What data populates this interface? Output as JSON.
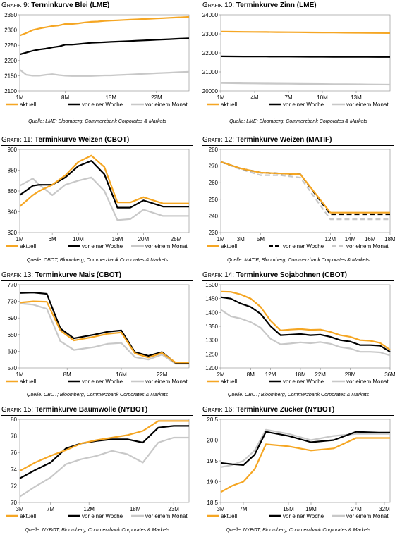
{
  "legend_labels": [
    "aktuell",
    "vor einer Woche",
    "vor einem Monat"
  ],
  "series_colors": [
    "#f5a623",
    "#000000",
    "#c8c8c8"
  ],
  "charts": [
    {
      "id": "g9",
      "prefix": "Grafik 9:",
      "title": "Terminkurve Blei (LME)",
      "source": "Quelle: LME; Bloomberg, Commerzbank Corporates & Markets",
      "chart_data": {
        "type": "line",
        "x": [
          1,
          2,
          3,
          4,
          5,
          6,
          7,
          8,
          9,
          10,
          11,
          12,
          13,
          14,
          15,
          16,
          17,
          18,
          19,
          20,
          21,
          22,
          23,
          24,
          25,
          26,
          27
        ],
        "xlim": [
          1,
          27
        ],
        "xticks": [
          1,
          8,
          15,
          22
        ],
        "xtick_labels": [
          "1M",
          "8M",
          "15M",
          "22M"
        ],
        "ylim": [
          2100,
          2350
        ],
        "yticks": [
          2100,
          2150,
          2200,
          2250,
          2300,
          2350
        ],
        "series": [
          {
            "name": "aktuell",
            "values": [
              2282,
              2290,
              2300,
              2305,
              2309,
              2313,
              2315,
              2320,
              2320,
              2322,
              2325,
              2327,
              2328,
              2330,
              2331,
              2332,
              2333,
              2334,
              2335,
              2336,
              2337,
              2338,
              2339,
              2340,
              2341,
              2342,
              2343
            ]
          },
          {
            "name": "vor einer Woche",
            "values": [
              2220,
              2226,
              2232,
              2236,
              2239,
              2243,
              2246,
              2252,
              2252,
              2254,
              2256,
              2258,
              2259,
              2260,
              2261,
              2262,
              2263,
              2264,
              2265,
              2266,
              2267,
              2268,
              2269,
              2270,
              2271,
              2272,
              2273
            ]
          },
          {
            "name": "vor einem Monat",
            "values": [
              2170,
              2153,
              2150,
              2150,
              2153,
              2155,
              2152,
              2150,
              2149,
              2149,
              2149,
              2149,
              2150,
              2151,
              2151,
              2152,
              2153,
              2154,
              2155,
              2156,
              2157,
              2158,
              2159,
              2160,
              2161,
              2162,
              2163
            ]
          }
        ]
      }
    },
    {
      "id": "g10",
      "prefix": "Grafik 10:",
      "title": "Terminkurve Zinn (LME)",
      "source": "Quelle: LME; Bloomberg, Commerzbank Corporates & Markets",
      "chart_data": {
        "type": "line",
        "x": [
          1,
          2,
          3,
          4,
          5,
          6,
          7,
          8,
          9,
          10,
          11,
          12,
          13,
          14,
          15,
          16
        ],
        "xlim": [
          1,
          16
        ],
        "xticks": [
          1,
          4,
          7,
          10,
          13
        ],
        "xtick_labels": [
          "1M",
          "4M",
          "7M",
          "10M",
          "13M"
        ],
        "ylim": [
          20000,
          24000
        ],
        "yticks": [
          20000,
          21000,
          22000,
          23000,
          24000
        ],
        "series": [
          {
            "name": "aktuell",
            "values": [
              23120,
              23110,
              23105,
              23100,
              23095,
              23090,
              23085,
              23080,
              23075,
              23070,
              23065,
              23060,
              23055,
              23050,
              23045,
              23040
            ]
          },
          {
            "name": "vor einer Woche",
            "values": [
              21820,
              21815,
              21810,
              21808,
              21806,
              21804,
              21802,
              21800,
              21798,
              21796,
              21794,
              21792,
              21790,
              21788,
              21786,
              21784
            ]
          },
          {
            "name": "vor einem Monat",
            "values": [
              20420,
              20410,
              20400,
              20395,
              20390,
              20385,
              20380,
              20375,
              20370,
              20365,
              20360,
              20355,
              20350,
              20345,
              20340,
              20335
            ]
          }
        ]
      }
    },
    {
      "id": "g11",
      "prefix": "Grafik 11:",
      "title": "Terminkurve Weizen (CBOT)",
      "source": "Quelle: CBOT; Bloomberg, Commerzbank Corporates & Markets",
      "chart_data": {
        "type": "line",
        "x": [
          1,
          3,
          4,
          6,
          8,
          10,
          12,
          14,
          16,
          18,
          20,
          23,
          25,
          27
        ],
        "xlim": [
          1,
          27
        ],
        "xticks": [
          1,
          6,
          10,
          16,
          20,
          25
        ],
        "xtick_labels": [
          "1M",
          "6M",
          "10M",
          "16M",
          "20M",
          "25M"
        ],
        "ylim": [
          820,
          900
        ],
        "yticks": [
          820,
          840,
          860,
          880,
          900
        ],
        "series": [
          {
            "name": "aktuell",
            "values": [
              845,
              856,
              860,
              866,
              875,
              888,
              894,
              883,
              849,
              849,
              854,
              848,
              848,
              848
            ]
          },
          {
            "name": "vor einer Woche",
            "values": [
              856,
              865,
              866,
              866,
              873,
              884,
              889,
              876,
              844,
              844,
              851,
              845,
              845,
              845
            ]
          },
          {
            "name": "vor einem Monat",
            "values": [
              865,
              872,
              866,
              856,
              866,
              870,
              873,
              860,
              832,
              833,
              842,
              836,
              836,
              836
            ]
          }
        ]
      }
    },
    {
      "id": "g12",
      "prefix": "Grafik 12:",
      "title": "Terminkurve Weizen (MATIF)",
      "source": "Quelle: MATIF; Bloomberg, Commerzbank Corporates & Markets",
      "chart_data": {
        "type": "line",
        "x": [
          1,
          3,
          5,
          7,
          9,
          12,
          14,
          16,
          18
        ],
        "xlim": [
          1,
          18
        ],
        "xticks": [
          1,
          3,
          5,
          12,
          14,
          16,
          18
        ],
        "xtick_labels": [
          "1M",
          "3M",
          "5M",
          "12M",
          "14M",
          "16M",
          "18M"
        ],
        "ylim": [
          230,
          280
        ],
        "yticks": [
          230,
          240,
          250,
          260,
          270,
          280
        ],
        "series": [
          {
            "name": "aktuell",
            "values": [
              272.5,
              268.5,
              266,
              265.5,
              265,
              242,
              242,
              242,
              242
            ]
          },
          {
            "name": "vor einer Woche",
            "values": [
              272.5,
              268.5,
              266,
              265.5,
              265,
              241,
              241,
              241,
              241
            ]
          },
          {
            "name": "vor einem Monat",
            "values": [
              272.5,
              268,
              264.5,
              264.5,
              263,
              238,
              238,
              238,
              238
            ]
          }
        ]
      }
    },
    {
      "id": "g13",
      "prefix": "Grafik 13:",
      "title": "Terminkurve Mais (CBOT)",
      "source": "Quelle: CBOT; Bloomberg, Commerzbank Corporates & Markets",
      "chart_data": {
        "type": "line",
        "x": [
          1,
          3,
          5,
          7,
          9,
          12,
          14,
          16,
          18,
          20,
          22,
          24,
          26
        ],
        "xlim": [
          1,
          26
        ],
        "xticks": [
          1,
          8,
          16,
          22
        ],
        "xtick_labels": [
          "1M",
          "8M",
          "16M",
          "22M"
        ],
        "ylim": [
          570,
          770
        ],
        "yticks": [
          570,
          610,
          650,
          690,
          730,
          770
        ],
        "series": [
          {
            "name": "aktuell",
            "values": [
              727,
              730,
              729,
              660,
              636,
              645,
              652,
              655,
              605,
              595,
              606,
              583,
              583
            ]
          },
          {
            "name": "vor einer Woche",
            "values": [
              750,
              751,
              748,
              665,
              641,
              650,
              657,
              660,
              608,
              599,
              608,
              582,
              582
            ]
          },
          {
            "name": "vor einem Monat",
            "values": [
              725,
              722,
              712,
              634,
              613,
              620,
              628,
              630,
              596,
              590,
              602,
              580,
              580
            ]
          }
        ]
      }
    },
    {
      "id": "g14",
      "prefix": "Grafik 14:",
      "title": "Terminkurve Sojabohnen (CBOT)",
      "source": "Quelle: CBOT; Bloomberg, Commerzbank Corporates & Markets",
      "chart_data": {
        "type": "line",
        "x": [
          2,
          4,
          6,
          8,
          10,
          12,
          14,
          16,
          18,
          20,
          22,
          24,
          26,
          28,
          30,
          32,
          34,
          36
        ],
        "xlim": [
          2,
          36
        ],
        "xticks": [
          2,
          8,
          12,
          18,
          22,
          28,
          36
        ],
        "xtick_labels": [
          "2M",
          "8M",
          "12M",
          "18M",
          "22M",
          "28M",
          "36M"
        ],
        "ylim": [
          1200,
          1500
        ],
        "yticks": [
          1200,
          1250,
          1300,
          1350,
          1400,
          1450,
          1500
        ],
        "series": [
          {
            "name": "aktuell",
            "values": [
              1475,
              1474,
              1465,
              1450,
              1420,
              1370,
              1335,
              1338,
              1340,
              1337,
              1338,
              1330,
              1318,
              1312,
              1300,
              1298,
              1290,
              1265
            ]
          },
          {
            "name": "vor einer Woche",
            "values": [
              1455,
              1450,
              1432,
              1420,
              1395,
              1350,
              1318,
              1320,
              1322,
              1318,
              1320,
              1312,
              1300,
              1295,
              1282,
              1282,
              1280,
              1258
            ]
          },
          {
            "name": "vor einem Monat",
            "values": [
              1410,
              1386,
              1378,
              1365,
              1345,
              1305,
              1285,
              1288,
              1292,
              1289,
              1293,
              1287,
              1275,
              1270,
              1258,
              1258,
              1256,
              1245
            ]
          }
        ]
      }
    },
    {
      "id": "g15",
      "prefix": "Grafik 15:",
      "title": "Terminkurve Baumwolle (NYBOT)",
      "source": "Quelle: NYBOT; Bloomberg, Commerzbank Corporates & Markets",
      "chart_data": {
        "type": "line",
        "x": [
          3,
          5,
          7,
          9,
          11,
          13,
          15,
          17,
          19,
          21,
          23,
          25
        ],
        "xlim": [
          3,
          25
        ],
        "xticks": [
          3,
          7,
          12,
          18,
          23
        ],
        "xtick_labels": [
          "3M",
          "7M",
          "12M",
          "18M",
          "23M"
        ],
        "ylim": [
          70,
          80
        ],
        "yticks": [
          70,
          72,
          74,
          76,
          78,
          80
        ],
        "series": [
          {
            "name": "aktuell",
            "values": [
              73.8,
              74.8,
              75.6,
              76.3,
              77.1,
              77.5,
              77.8,
              78.1,
              78.6,
              79.8,
              79.8,
              79.8
            ]
          },
          {
            "name": "vor einer Woche",
            "values": [
              72.9,
              73.9,
              74.8,
              76.5,
              77.1,
              77.4,
              77.6,
              77.6,
              77.2,
              79.0,
              79.2,
              79.2
            ]
          },
          {
            "name": "vor einem Monat",
            "values": [
              70.7,
              71.9,
              73.0,
              74.6,
              75.2,
              75.6,
              76.2,
              75.8,
              74.8,
              77.2,
              77.8,
              77.8
            ]
          }
        ]
      }
    },
    {
      "id": "g16",
      "prefix": "Grafik 16:",
      "title": "Terminkurve Zucker (NYBOT)",
      "source": "Quelle: NYBOT; Bloomberg, Commerzbank Corporates & Markets",
      "chart_data": {
        "type": "line",
        "x": [
          3,
          5,
          7,
          9,
          11,
          15,
          19,
          23,
          27,
          31,
          33
        ],
        "xlim": [
          3,
          33
        ],
        "xticks": [
          3,
          7,
          15,
          19,
          27,
          32
        ],
        "xtick_labels": [
          "3M",
          "7M",
          "15M",
          "19M",
          "27M",
          "32M"
        ],
        "ylim": [
          18.5,
          20.5
        ],
        "yticks": [
          18.5,
          19.0,
          19.5,
          20.0,
          20.5
        ],
        "ytick_labels": [
          "18.5",
          "19.0",
          "19.5",
          "20.0",
          "20.5"
        ],
        "series": [
          {
            "name": "aktuell",
            "values": [
              18.75,
              18.9,
              19.0,
              19.3,
              19.9,
              19.85,
              19.75,
              19.8,
              20.05,
              20.05,
              20.05
            ]
          },
          {
            "name": "vor einer Woche",
            "values": [
              19.45,
              19.42,
              19.4,
              19.65,
              20.2,
              20.1,
              19.95,
              20.0,
              20.2,
              20.18,
              20.18
            ]
          },
          {
            "name": "vor einem Monat",
            "values": [
              19.35,
              19.4,
              19.5,
              19.75,
              20.25,
              20.15,
              20.0,
              20.1,
              20.15,
              20.15,
              20.15
            ]
          }
        ]
      }
    }
  ]
}
